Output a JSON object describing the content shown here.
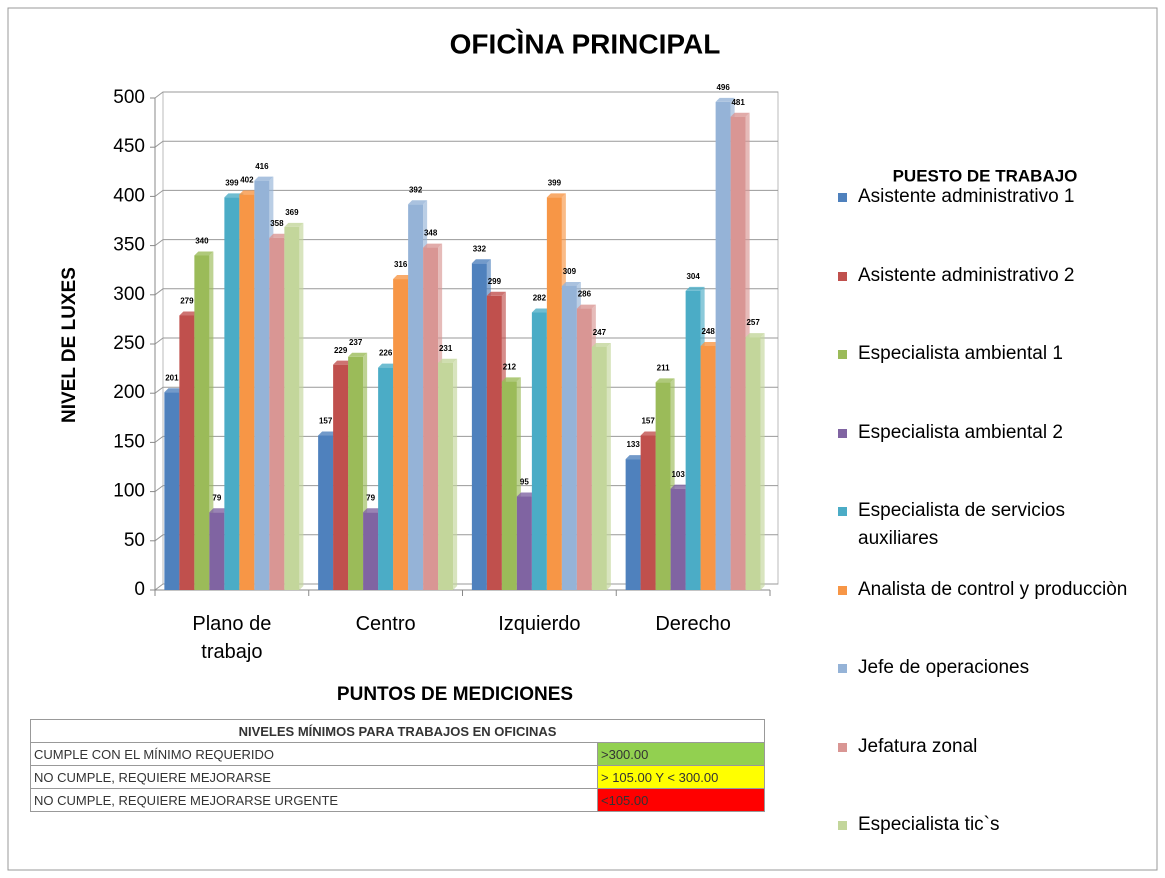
{
  "chart_data": {
    "type": "bar",
    "title": "OFICÌNA PRINCIPAL",
    "y_label": "NIVEL DE LUXES",
    "x_label": "PUNTOS DE MEDICIONES",
    "legend_title": "PUESTO DE TRABAJO",
    "legend": "right",
    "grid": true,
    "categories": [
      "Plano de trabajo",
      "Centro",
      "Izquierdo",
      "Derecho"
    ],
    "ylim": [
      0,
      500
    ],
    "yticks": [
      0,
      50,
      100,
      150,
      200,
      250,
      300,
      350,
      400,
      450,
      500
    ],
    "series": [
      {
        "name": "Asistente administrativo 1",
        "color": "#4f81bd",
        "values": [
          201,
          157,
          332,
          133
        ]
      },
      {
        "name": "Asistente administrativo 2",
        "color": "#c0504d",
        "values": [
          279,
          229,
          299,
          157
        ]
      },
      {
        "name": "Especialista ambiental 1",
        "color": "#9bbb59",
        "values": [
          340,
          237,
          212,
          211
        ]
      },
      {
        "name": "Especialista ambiental 2",
        "color": "#8064a2",
        "values": [
          79,
          79,
          95,
          103
        ]
      },
      {
        "name": "Especialista de servicios auxiliares",
        "color": "#4bacc6",
        "values": [
          399,
          226,
          282,
          304
        ]
      },
      {
        "name": "Analista de control y producciòn",
        "color": "#f79646",
        "values": [
          402,
          316,
          399,
          248
        ]
      },
      {
        "name": "Jefe de operaciones",
        "color": "#95b3d7",
        "values": [
          416,
          392,
          309,
          496
        ]
      },
      {
        "name": "Jefatura zonal",
        "color": "#d99694",
        "values": [
          358,
          348,
          286,
          481
        ]
      },
      {
        "name": "Especialista tic`s",
        "color": "#c3d69b",
        "values": [
          369,
          231,
          247,
          257
        ]
      }
    ]
  },
  "table": {
    "title": "NIVELES MÍNIMOS PARA TRABAJOS EN OFICINAS",
    "rows": [
      [
        "CUMPLE CON EL MÍNIMO REQUERIDO",
        ">300.00"
      ],
      [
        "NO CUMPLE, REQUIERE MEJORARSE",
        "> 105.00 Y < 300.00"
      ],
      [
        "NO CUMPLE, REQUIERE MEJORARSE URGENTE",
        "<105.00"
      ]
    ],
    "colors": [
      "#92d050",
      "#ffff00",
      "#ff0000"
    ]
  }
}
